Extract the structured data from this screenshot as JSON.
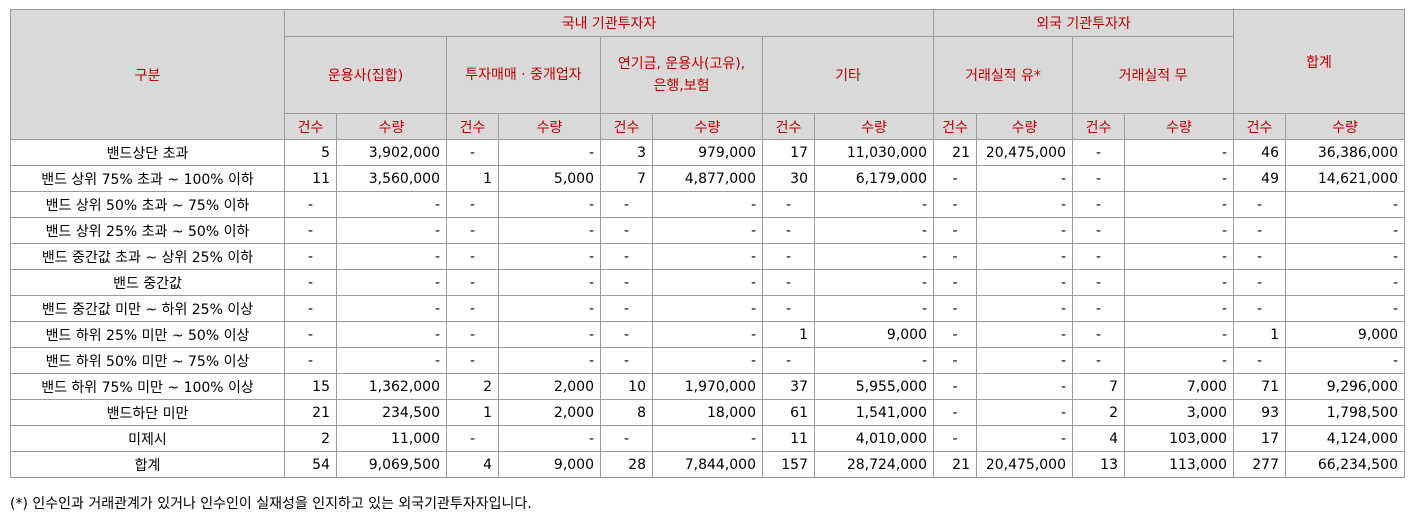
{
  "header": {
    "category": "구분",
    "domestic": "국내 기관투자자",
    "foreign": "외국 기관투자자",
    "total": "합계",
    "sub": [
      "운용사(집합)",
      "투자매매 · 중개업자",
      "연기금, 운용사(고유), 은행,보험",
      "기타",
      "거래실적 유*",
      "거래실적 무"
    ],
    "count": "건수",
    "qty": "수량"
  },
  "rows": [
    {
      "label": "밴드상단 초과",
      "cells": [
        "5",
        "3,902,000",
        "-",
        "-",
        "3",
        "979,000",
        "17",
        "11,030,000",
        "21",
        "20,475,000",
        "-",
        "-",
        "46",
        "36,386,000"
      ]
    },
    {
      "label": "밴드 상위 75% 초과 ~ 100% 이하",
      "cells": [
        "11",
        "3,560,000",
        "1",
        "5,000",
        "7",
        "4,877,000",
        "30",
        "6,179,000",
        "-",
        "-",
        "-",
        "-",
        "49",
        "14,621,000"
      ]
    },
    {
      "label": "밴드 상위 50% 초과 ~ 75% 이하",
      "cells": [
        "-",
        "-",
        "-",
        "-",
        "-",
        "-",
        "-",
        "-",
        "-",
        "-",
        "-",
        "-",
        "-",
        "-"
      ]
    },
    {
      "label": "밴드 상위 25% 초과 ~ 50% 이하",
      "cells": [
        "-",
        "-",
        "-",
        "-",
        "-",
        "-",
        "-",
        "-",
        "-",
        "-",
        "-",
        "-",
        "-",
        "-"
      ]
    },
    {
      "label": "밴드 중간값 초과 ~ 상위 25% 이하",
      "cells": [
        "-",
        "-",
        "-",
        "-",
        "-",
        "-",
        "-",
        "-",
        "-",
        "-",
        "-",
        "-",
        "-",
        "-"
      ]
    },
    {
      "label": "밴드 중간값",
      "cells": [
        "-",
        "-",
        "-",
        "-",
        "-",
        "-",
        "-",
        "-",
        "-",
        "-",
        "-",
        "-",
        "-",
        "-"
      ]
    },
    {
      "label": "밴드 중간값 미만 ~ 하위 25% 이상",
      "cells": [
        "-",
        "-",
        "-",
        "-",
        "-",
        "-",
        "-",
        "-",
        "-",
        "-",
        "-",
        "-",
        "-",
        "-"
      ]
    },
    {
      "label": "밴드 하위 25% 미만 ~ 50% 이상",
      "cells": [
        "-",
        "-",
        "-",
        "-",
        "-",
        "-",
        "1",
        "9,000",
        "-",
        "-",
        "-",
        "-",
        "1",
        "9,000"
      ]
    },
    {
      "label": "밴드 하위 50% 미만 ~ 75% 이상",
      "cells": [
        "-",
        "-",
        "-",
        "-",
        "-",
        "-",
        "-",
        "-",
        "-",
        "-",
        "-",
        "-",
        "-",
        "-"
      ]
    },
    {
      "label": "밴드 하위 75% 미만 ~ 100% 이상",
      "cells": [
        "15",
        "1,362,000",
        "2",
        "2,000",
        "10",
        "1,970,000",
        "37",
        "5,955,000",
        "-",
        "-",
        "7",
        "7,000",
        "71",
        "9,296,000"
      ]
    },
    {
      "label": "밴드하단 미만",
      "cells": [
        "21",
        "234,500",
        "1",
        "2,000",
        "8",
        "18,000",
        "61",
        "1,541,000",
        "-",
        "-",
        "2",
        "3,000",
        "93",
        "1,798,500"
      ]
    },
    {
      "label": "미제시",
      "cells": [
        "2",
        "11,000",
        "-",
        "-",
        "-",
        "-",
        "11",
        "4,010,000",
        "-",
        "-",
        "4",
        "103,000",
        "17",
        "4,124,000"
      ]
    },
    {
      "label": "합계",
      "cells": [
        "54",
        "9,069,500",
        "4",
        "9,000",
        "28",
        "7,844,000",
        "157",
        "28,724,000",
        "21",
        "20,475,000",
        "13",
        "113,000",
        "277",
        "66,234,500"
      ]
    }
  ],
  "footnote": "(*) 인수인과 거래관계가 있거나 인수인이 실재성을 인지하고 있는 외국기관투자자입니다."
}
